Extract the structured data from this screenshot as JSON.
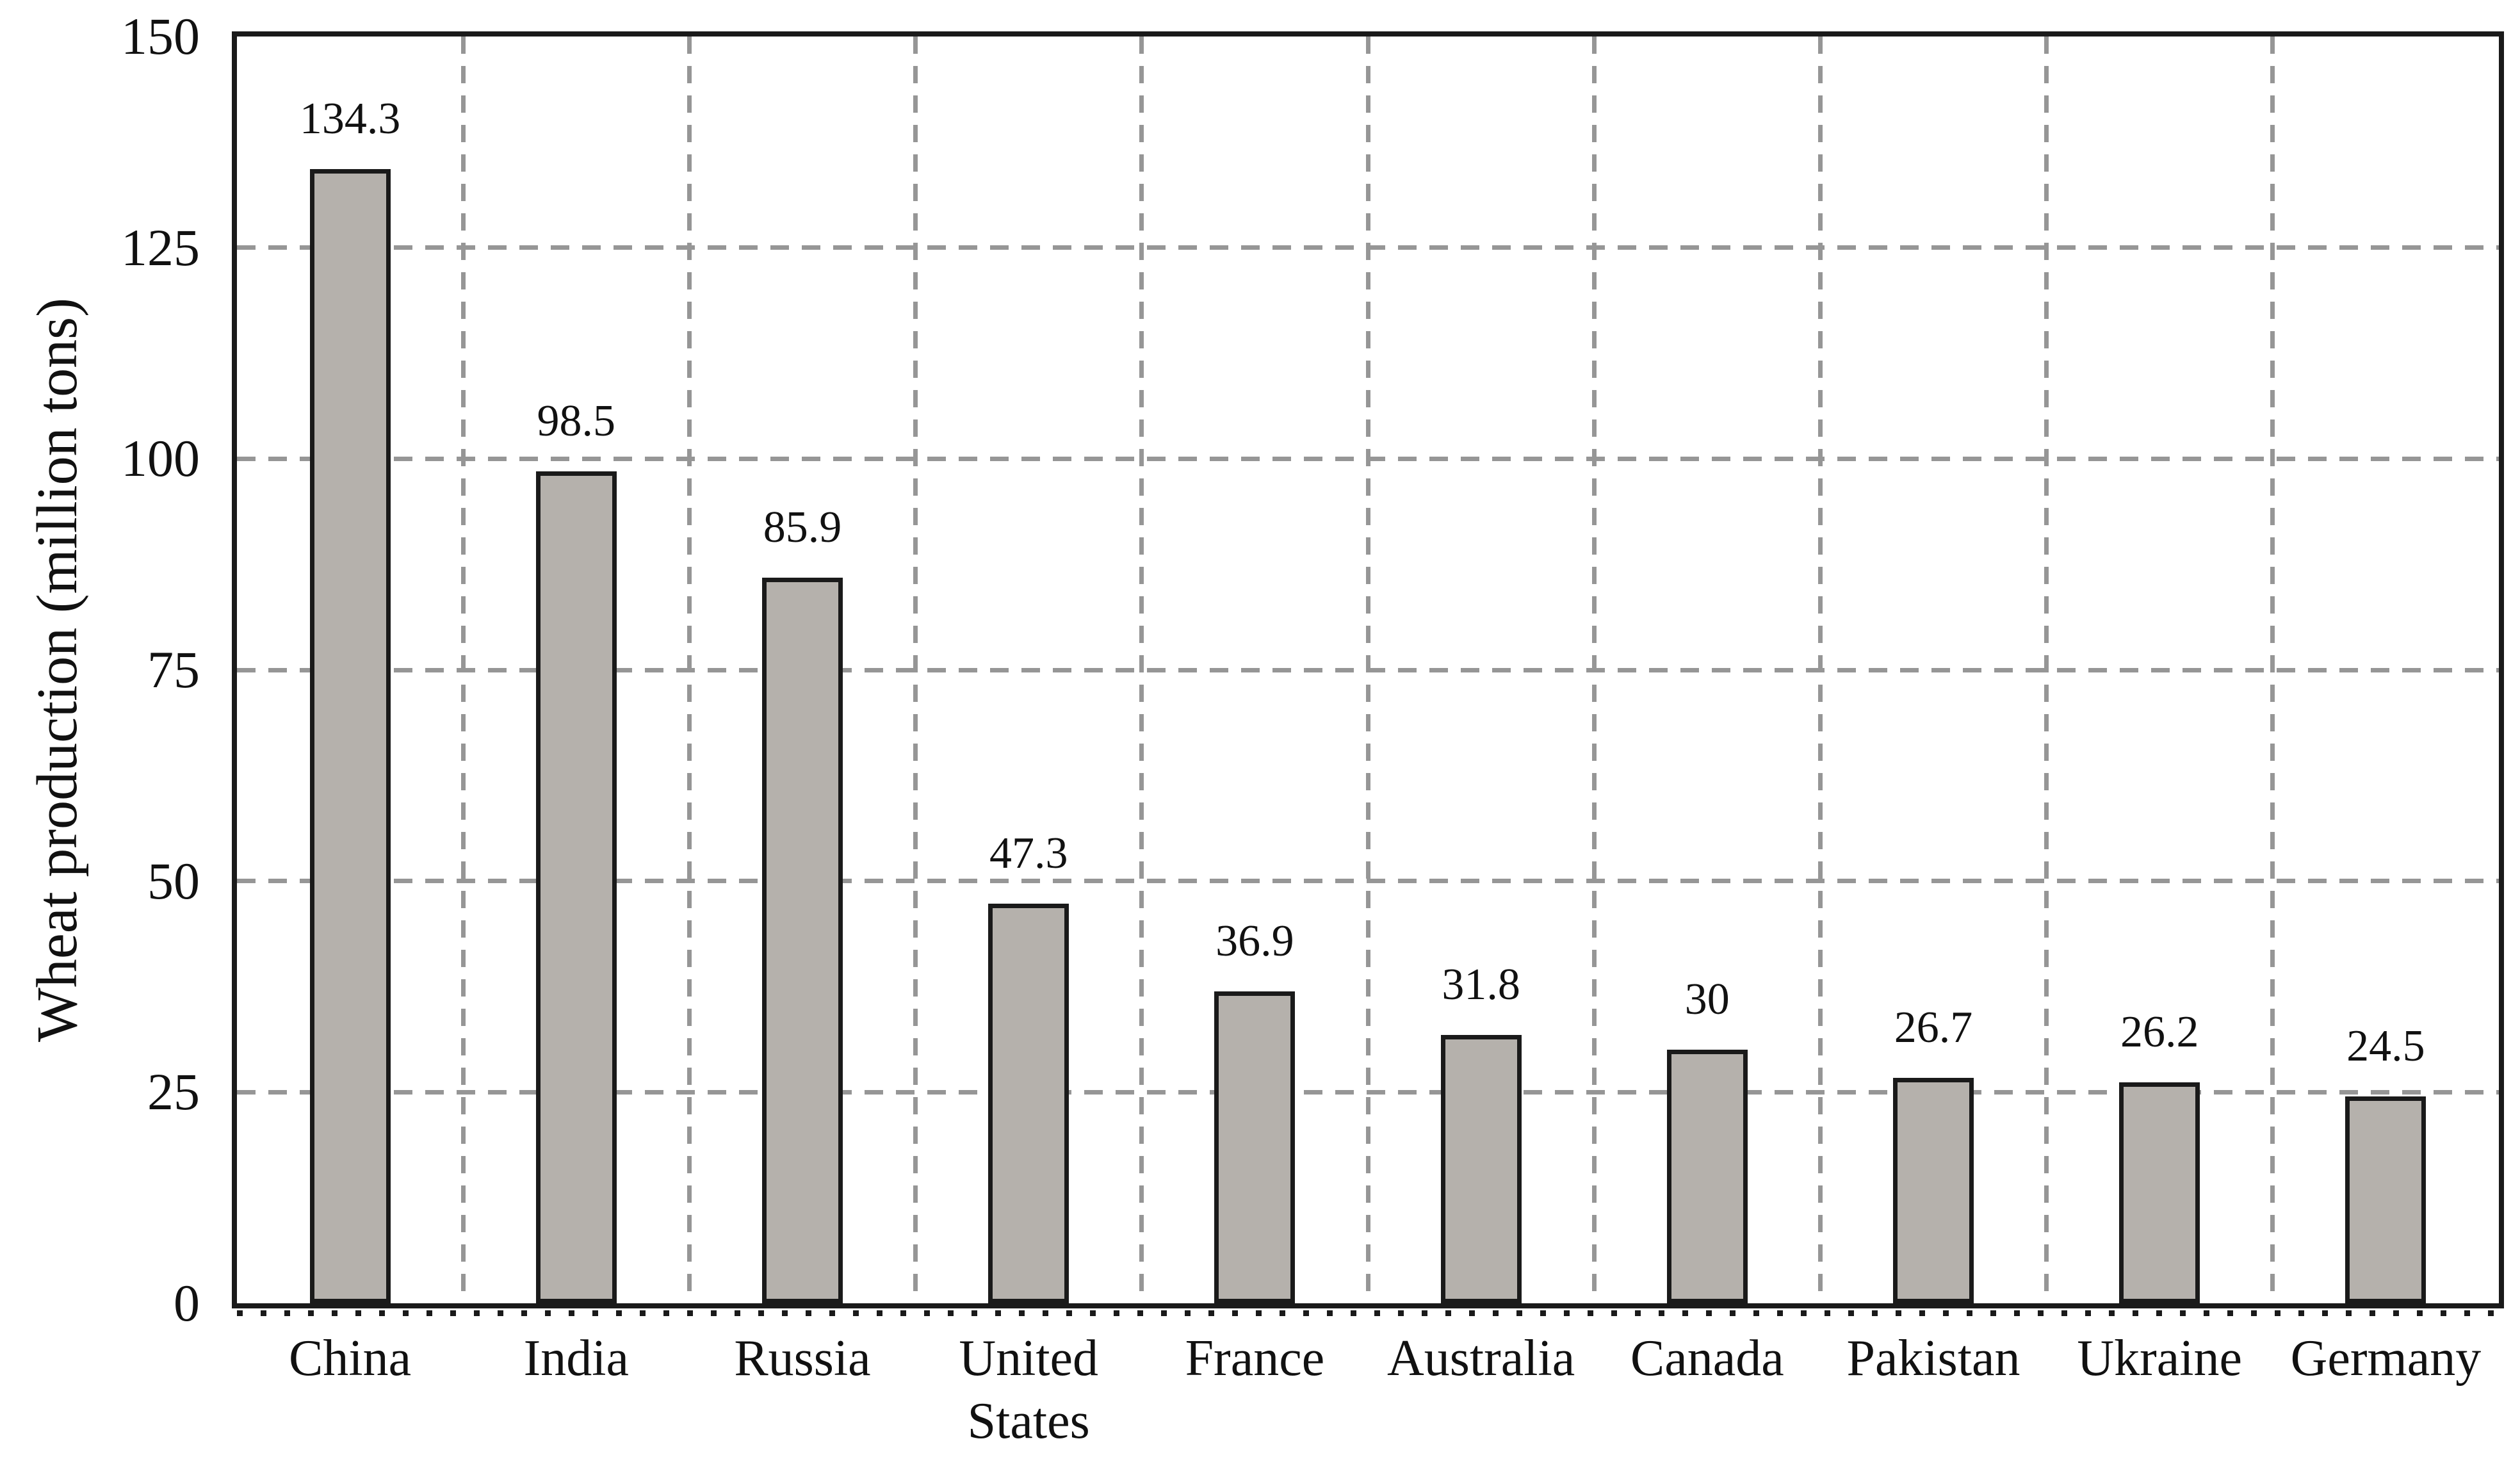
{
  "chart_data": {
    "type": "bar",
    "categories": [
      "China",
      "India",
      "Russia",
      "United States",
      "France",
      "Australia",
      "Canada",
      "Pakistan",
      "Ukraine",
      "Germany"
    ],
    "values": [
      134.3,
      98.5,
      85.9,
      47.3,
      36.9,
      31.8,
      30,
      26.7,
      26.2,
      24.5
    ],
    "title": "",
    "xlabel": "",
    "ylabel": "Wheat production (million tons)",
    "ylim": [
      0,
      150
    ],
    "yticks": [
      0,
      25,
      50,
      75,
      100,
      125,
      150
    ],
    "grid": "dashed gray gridlines, horizontal at each 25 and vertical at category boundaries",
    "legend_position": "none",
    "data_labels_shown": true,
    "colors": {
      "bar_fill": "#b5b1ac",
      "bar_border": "#1a1a1a",
      "grid_line": "#969696",
      "axis_frame": "#1a1a1a",
      "text": "#111111",
      "background": "#ffffff"
    }
  }
}
